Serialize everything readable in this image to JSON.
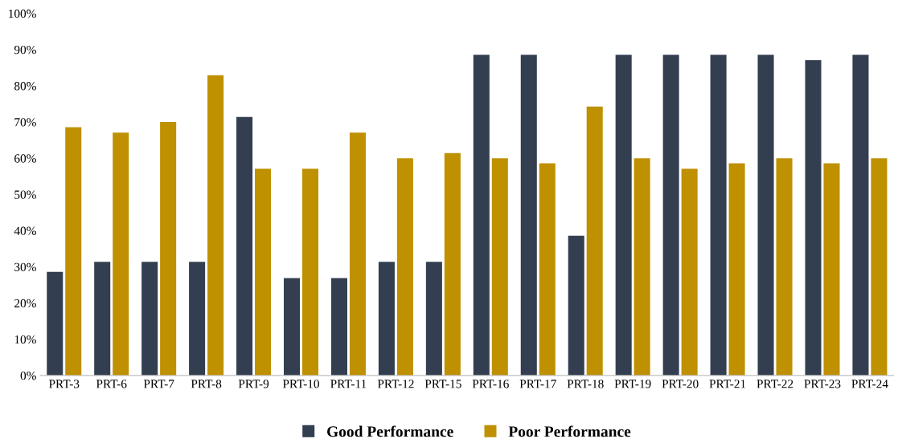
{
  "chart_data": {
    "type": "bar",
    "categories": [
      "PRT-3",
      "PRT-6",
      "PRT-7",
      "PRT-8",
      "PRT-9",
      "PRT-10",
      "PRT-11",
      "PRT-12",
      "PRT-15",
      "PRT-16",
      "PRT-17",
      "PRT-18",
      "PRT-19",
      "PRT-20",
      "PRT-21",
      "PRT-22",
      "PRT-23",
      "PRT-24"
    ],
    "series": [
      {
        "name": "Good Performance",
        "color": "#333f50",
        "values": [
          28.6,
          31.4,
          31.4,
          31.4,
          71.4,
          26.9,
          26.9,
          31.4,
          31.4,
          88.6,
          88.6,
          38.6,
          88.6,
          88.6,
          88.6,
          88.6,
          87.1,
          88.6
        ]
      },
      {
        "name": "Poor Performance",
        "color": "#bf9000",
        "values": [
          68.6,
          67.1,
          70.0,
          82.9,
          57.1,
          57.1,
          67.1,
          60.0,
          61.4,
          60.0,
          58.6,
          74.3,
          60.0,
          57.1,
          58.6,
          60.0,
          58.6,
          60.0
        ]
      }
    ],
    "ylim": [
      0,
      100
    ],
    "yticks": [
      {
        "value": 0,
        "label": "0%"
      },
      {
        "value": 10,
        "label": "10%"
      },
      {
        "value": 20,
        "label": "20%"
      },
      {
        "value": 30,
        "label": "30%"
      },
      {
        "value": 40,
        "label": "40%"
      },
      {
        "value": 50,
        "label": "50%"
      },
      {
        "value": 60,
        "label": "60%"
      },
      {
        "value": 70,
        "label": "70%"
      },
      {
        "value": 80,
        "label": "80%"
      },
      {
        "value": 90,
        "label": "90%"
      },
      {
        "value": 100,
        "label": "100%"
      }
    ],
    "grid": false,
    "legend": "bottom"
  }
}
